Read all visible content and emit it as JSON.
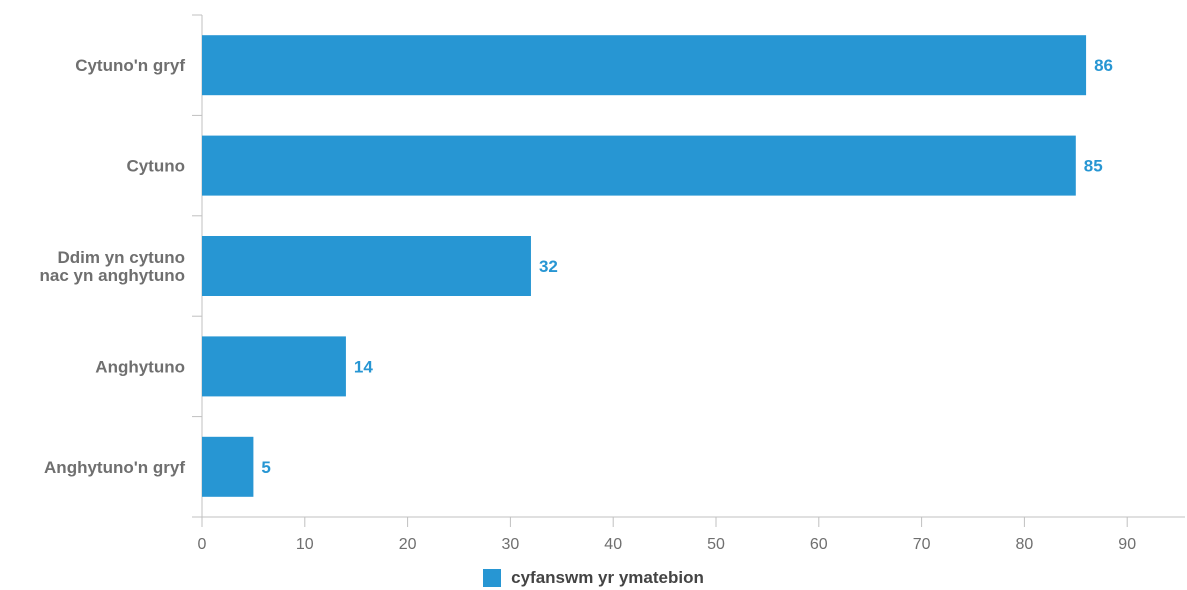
{
  "chart_data": {
    "type": "bar",
    "orientation": "horizontal",
    "categories": [
      [
        "Cytuno'n gryf"
      ],
      [
        "Cytuno"
      ],
      [
        "Ddim yn cytuno",
        "nac yn anghytuno"
      ],
      [
        "Anghytuno"
      ],
      [
        "Anghytuno'n gryf"
      ]
    ],
    "series": [
      {
        "name": "cyfanswm yr ymatebion",
        "values": [
          86,
          85,
          32,
          14,
          5
        ]
      }
    ],
    "xlim": [
      0,
      95
    ],
    "xticks": [
      0,
      10,
      20,
      30,
      40,
      50,
      60,
      70,
      80,
      90
    ],
    "grid": false,
    "legend_position": "bottom-center",
    "colors": {
      "bar": "#2796d3",
      "data_label": "#2796d3",
      "axis": "#c0c0c0"
    }
  },
  "legend": {
    "label": "cyfanswm yr ymatebion"
  }
}
